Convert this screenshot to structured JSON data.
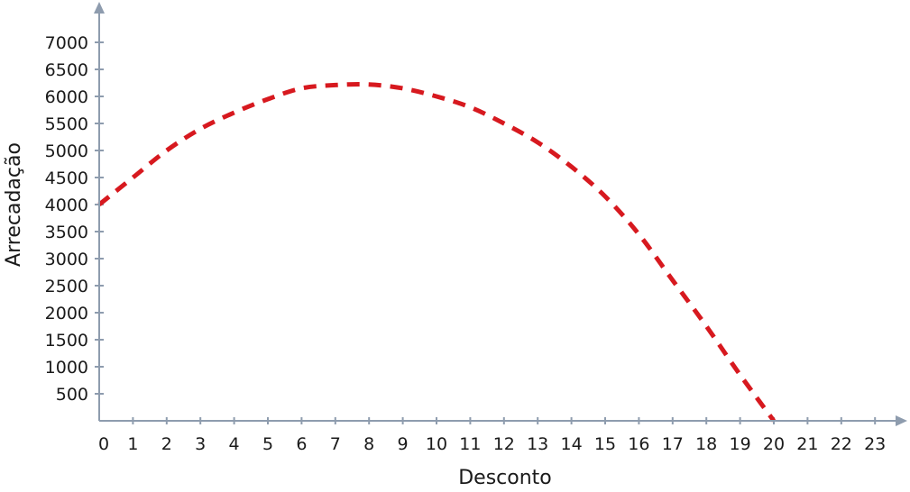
{
  "chart_data": {
    "type": "line",
    "xlabel": "Desconto",
    "ylabel": "Arrecadação",
    "xlim": [
      0,
      23
    ],
    "ylim": [
      0,
      7000
    ],
    "x_ticks": [
      0,
      1,
      2,
      3,
      4,
      5,
      6,
      7,
      8,
      9,
      10,
      11,
      12,
      13,
      14,
      15,
      16,
      17,
      18,
      19,
      20,
      21,
      22,
      23
    ],
    "y_ticks": [
      500,
      1000,
      1500,
      2000,
      2500,
      3000,
      3500,
      4000,
      4500,
      5000,
      5500,
      6000,
      6500,
      7000
    ],
    "grid": false,
    "series": [
      {
        "line_style": "dashed",
        "color": "#d7191f",
        "x": [
          0,
          1,
          2,
          3,
          4,
          5,
          6,
          7,
          8,
          9,
          10,
          11,
          12,
          13,
          14,
          15,
          16,
          17,
          18,
          19,
          20
        ],
        "values": [
          4000,
          4500,
          5000,
          5400,
          5700,
          5950,
          6150,
          6210,
          6220,
          6150,
          6000,
          5800,
          5500,
          5150,
          4700,
          4150,
          3450,
          2600,
          1750,
          850,
          0
        ]
      }
    ]
  },
  "colors": {
    "axis": "#8e9cae",
    "series": "#d7191f",
    "text": "#1a1a1a"
  }
}
